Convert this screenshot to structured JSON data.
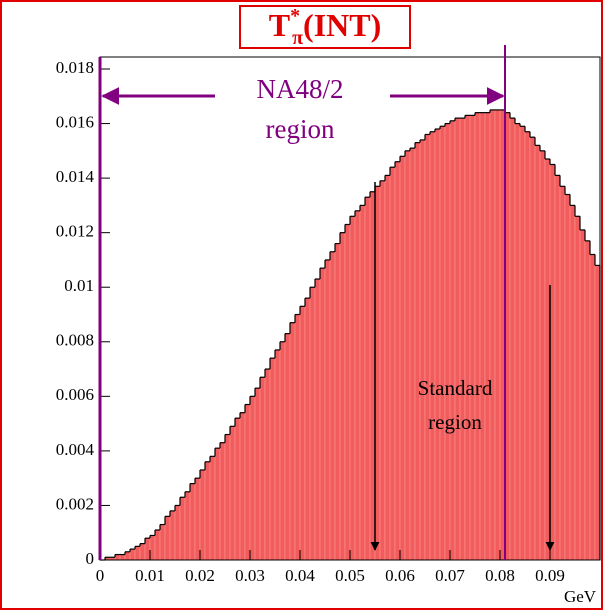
{
  "chart_data": {
    "type": "histogram",
    "title": {
      "base": "T",
      "sup": "*",
      "sub": "π",
      "rest": "(INT)"
    },
    "x_label": "GeV",
    "annotations": {
      "na48_1": "NA48/2",
      "na48_2": "region",
      "std_1": "Standard",
      "std_2": "region"
    },
    "color": "#f25c5c",
    "bins": [
      0,
      0.001,
      0.002,
      0.003,
      0.004,
      0.005,
      0.006,
      0.007,
      0.008,
      0.009,
      0.01,
      0.011,
      0.012,
      0.013,
      0.014,
      0.015,
      0.016,
      0.017,
      0.018,
      0.019,
      0.02,
      0.021,
      0.022,
      0.023,
      0.024,
      0.025,
      0.026,
      0.027,
      0.028,
      0.029,
      0.03,
      0.031,
      0.032,
      0.033,
      0.034,
      0.035,
      0.036,
      0.037,
      0.038,
      0.039,
      0.04,
      0.041,
      0.042,
      0.043,
      0.044,
      0.045,
      0.046,
      0.047,
      0.048,
      0.049,
      0.05,
      0.051,
      0.052,
      0.053,
      0.054,
      0.055,
      0.056,
      0.057,
      0.058,
      0.059,
      0.06,
      0.061,
      0.062,
      0.063,
      0.064,
      0.065,
      0.066,
      0.067,
      0.068,
      0.069,
      0.07,
      0.071,
      0.072,
      0.073,
      0.074,
      0.075,
      0.076,
      0.077,
      0.078,
      0.079,
      0.08,
      0.081,
      0.082,
      0.083,
      0.084,
      0.085,
      0.086,
      0.087,
      0.088,
      0.089,
      0.09,
      0.091,
      0.092,
      0.093,
      0.094,
      0.095,
      0.096,
      0.097,
      0.098,
      0.099,
      0.1
    ],
    "values": [
      0,
      0.0001,
      0.0001,
      0.0002,
      0.0002,
      0.0003,
      0.0004,
      0.0005,
      0.0006,
      0.0008,
      0.0009,
      0.0011,
      0.0013,
      0.0016,
      0.0018,
      0.002,
      0.0023,
      0.0025,
      0.0028,
      0.003,
      0.0033,
      0.0036,
      0.0038,
      0.0041,
      0.0043,
      0.0046,
      0.0049,
      0.0052,
      0.0054,
      0.0057,
      0.006,
      0.0063,
      0.0067,
      0.007,
      0.0074,
      0.0077,
      0.008,
      0.0083,
      0.0087,
      0.009,
      0.0093,
      0.0096,
      0.01,
      0.0103,
      0.0107,
      0.011,
      0.0113,
      0.0116,
      0.012,
      0.0123,
      0.0126,
      0.0128,
      0.013,
      0.0133,
      0.0135,
      0.0137,
      0.0139,
      0.0141,
      0.0144,
      0.0146,
      0.0148,
      0.015,
      0.0151,
      0.0153,
      0.0154,
      0.0156,
      0.0157,
      0.0158,
      0.0159,
      0.016,
      0.0161,
      0.0162,
      0.0162,
      0.0163,
      0.0163,
      0.0164,
      0.0164,
      0.0164,
      0.0165,
      0.0165,
      0.0165,
      0.0164,
      0.0162,
      0.016,
      0.0159,
      0.0157,
      0.0155,
      0.0152,
      0.015,
      0.0147,
      0.0145,
      0.0141,
      0.0137,
      0.0134,
      0.013,
      0.0126,
      0.0121,
      0.0117,
      0.0112,
      0.0108
    ],
    "xlim": [
      0,
      0.1
    ],
    "ylim": [
      0,
      0.018
    ],
    "xticks": [
      0,
      0.01,
      0.02,
      0.03,
      0.04,
      0.05,
      0.06,
      0.07,
      0.08,
      0.09
    ],
    "yticks": [
      0,
      0.002,
      0.004,
      0.006,
      0.008,
      0.01,
      0.012,
      0.014,
      0.016,
      0.018
    ]
  }
}
